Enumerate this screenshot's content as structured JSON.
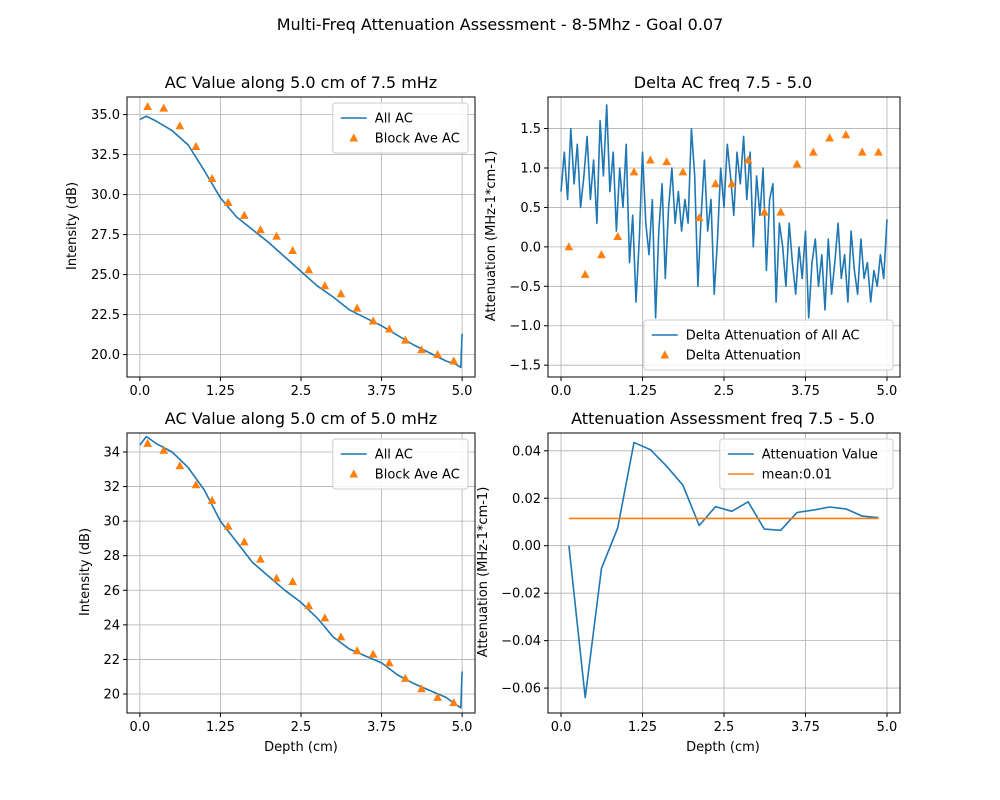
{
  "figure": {
    "suptitle": "Multi-Freq Attenuation Assessment - 8-5Mhz - Goal 0.07"
  },
  "colors": {
    "blue": "#1f77b4",
    "orange": "#ff7f0e",
    "grid": "#b0b0b0"
  },
  "chart_data": [
    {
      "type": "line",
      "title": "AC Value along 5.0 cm of 7.5 mHz",
      "xlabel": "",
      "ylabel": "Intensity (dB)",
      "xlim": [
        -0.2,
        5.2
      ],
      "ylim": [
        18.6,
        36.1
      ],
      "xticks": [
        0.0,
        1.25,
        2.5,
        3.75,
        5.0
      ],
      "xtick_labels": [
        "0.0",
        "1.25",
        "2.5",
        "3.75",
        "5.0"
      ],
      "yticks": [
        20.0,
        22.5,
        25.0,
        27.5,
        30.0,
        32.5,
        35.0
      ],
      "ytick_labels": [
        "20.0",
        "22.5",
        "25.0",
        "27.5",
        "30.0",
        "32.5",
        "35.0"
      ],
      "grid": true,
      "legend_position": "top-right",
      "series": [
        {
          "name": "All AC",
          "style": "line",
          "x": [
            0.0,
            0.1,
            0.25,
            0.5,
            0.75,
            1.0,
            1.25,
            1.5,
            1.75,
            2.0,
            2.25,
            2.5,
            2.75,
            3.0,
            3.25,
            3.5,
            3.75,
            4.0,
            4.25,
            4.5,
            4.75,
            4.9,
            4.98,
            5.0
          ],
          "y": [
            34.7,
            34.9,
            34.6,
            34.0,
            33.1,
            31.5,
            29.8,
            28.6,
            27.8,
            27.0,
            26.1,
            25.2,
            24.3,
            23.6,
            22.8,
            22.3,
            21.8,
            21.2,
            20.6,
            20.1,
            19.6,
            19.4,
            19.2,
            21.3
          ]
        },
        {
          "name": "Block Ave AC",
          "style": "triangle",
          "x": [
            0.12,
            0.37,
            0.62,
            0.87,
            1.12,
            1.37,
            1.62,
            1.87,
            2.12,
            2.37,
            2.62,
            2.87,
            3.12,
            3.37,
            3.62,
            3.87,
            4.12,
            4.37,
            4.62,
            4.87
          ],
          "y": [
            35.5,
            35.4,
            34.3,
            33.0,
            31.0,
            29.5,
            28.7,
            27.8,
            27.4,
            26.5,
            25.3,
            24.3,
            23.8,
            22.9,
            22.1,
            21.6,
            20.9,
            20.3,
            20.0,
            19.6
          ]
        }
      ]
    },
    {
      "type": "line",
      "title": "Delta AC freq 7.5 - 5.0",
      "xlabel": "",
      "ylabel": "Attenuation (MHz-1*cm-1)",
      "xlim": [
        -0.2,
        5.2
      ],
      "ylim": [
        -1.65,
        1.9
      ],
      "xticks": [
        0.0,
        1.25,
        2.5,
        3.75,
        5.0
      ],
      "xtick_labels": [
        "0.0",
        "1.25",
        "2.5",
        "3.75",
        "5.0"
      ],
      "yticks": [
        -1.5,
        -1.0,
        -0.5,
        0.0,
        0.5,
        1.0,
        1.5
      ],
      "ytick_labels": [
        "−1.5",
        "−1.0",
        "−0.5",
        "0.0",
        "0.5",
        "1.0",
        "1.5"
      ],
      "grid": true,
      "legend_position": "bottom-right",
      "series": [
        {
          "name": "Delta Attenuation of All AC",
          "style": "line",
          "x": [
            0.0,
            0.05,
            0.1,
            0.15,
            0.2,
            0.25,
            0.3,
            0.35,
            0.4,
            0.45,
            0.5,
            0.55,
            0.6,
            0.65,
            0.7,
            0.75,
            0.8,
            0.85,
            0.9,
            0.95,
            1.0,
            1.05,
            1.1,
            1.15,
            1.2,
            1.25,
            1.3,
            1.35,
            1.4,
            1.45,
            1.5,
            1.55,
            1.6,
            1.65,
            1.7,
            1.75,
            1.8,
            1.85,
            1.9,
            1.95,
            2.0,
            2.05,
            2.1,
            2.15,
            2.2,
            2.25,
            2.3,
            2.35,
            2.4,
            2.45,
            2.5,
            2.55,
            2.6,
            2.65,
            2.7,
            2.75,
            2.8,
            2.85,
            2.9,
            2.95,
            3.0,
            3.05,
            3.1,
            3.15,
            3.2,
            3.25,
            3.3,
            3.35,
            3.4,
            3.45,
            3.5,
            3.55,
            3.6,
            3.65,
            3.7,
            3.75,
            3.8,
            3.85,
            3.9,
            3.95,
            4.0,
            4.05,
            4.1,
            4.15,
            4.2,
            4.25,
            4.3,
            4.35,
            4.4,
            4.45,
            4.5,
            4.55,
            4.6,
            4.65,
            4.7,
            4.75,
            4.8,
            4.85,
            4.9,
            4.95,
            5.0
          ],
          "y": [
            0.7,
            1.2,
            0.6,
            1.5,
            0.8,
            1.3,
            0.5,
            0.9,
            1.4,
            0.6,
            1.1,
            0.3,
            1.6,
            0.9,
            1.8,
            0.7,
            1.2,
            0.2,
            1.0,
            0.5,
            1.3,
            -0.2,
            0.4,
            -0.7,
            0.1,
            1.2,
            0.3,
            -0.1,
            0.6,
            -0.9,
            0.2,
            0.8,
            -0.4,
            0.5,
            1.0,
            0.3,
            0.7,
            0.2,
            0.6,
            0.3,
            1.5,
            0.9,
            -0.5,
            0.4,
            1.1,
            0.2,
            0.6,
            -0.6,
            0.1,
            1.0,
            0.5,
            1.3,
            0.9,
            0.4,
            1.2,
            0.8,
            1.4,
            0.6,
            1.2,
            0.0,
            0.9,
            0.4,
            1.0,
            -0.3,
            0.6,
            0.8,
            -0.7,
            0.3,
            0.0,
            -0.5,
            0.3,
            -0.2,
            -0.6,
            0.0,
            -0.4,
            0.2,
            -0.9,
            -0.2,
            0.1,
            -0.5,
            -0.1,
            -0.8,
            0.1,
            -0.6,
            -0.2,
            0.3,
            -0.4,
            -0.1,
            -0.7,
            0.2,
            -0.3,
            -0.6,
            0.1,
            -0.4,
            -0.2,
            -0.7,
            -0.3,
            -0.5,
            -0.1,
            -0.4,
            0.35
          ]
        },
        {
          "name": "Delta Attenuation",
          "style": "triangle",
          "x": [
            0.12,
            0.37,
            0.62,
            0.87,
            1.12,
            1.37,
            1.62,
            1.87,
            2.12,
            2.37,
            2.62,
            2.87,
            3.12,
            3.37,
            3.62,
            3.87,
            4.12,
            4.37,
            4.62,
            4.87
          ],
          "y": [
            0.0,
            -0.35,
            -0.1,
            0.13,
            0.95,
            1.1,
            1.08,
            0.95,
            0.37,
            0.8,
            0.8,
            1.1,
            0.44,
            0.44,
            1.05,
            1.2,
            1.38,
            1.42,
            1.2,
            1.2
          ]
        }
      ]
    },
    {
      "type": "line",
      "title": "AC Value along 5.0 cm of 5.0 mHz",
      "xlabel": "Depth (cm)",
      "ylabel": "Intensity (dB)",
      "xlim": [
        -0.2,
        5.2
      ],
      "ylim": [
        18.9,
        35.1
      ],
      "xticks": [
        0.0,
        1.25,
        2.5,
        3.75,
        5.0
      ],
      "xtick_labels": [
        "0.0",
        "1.25",
        "2.5",
        "3.75",
        "5.0"
      ],
      "yticks": [
        20,
        22,
        24,
        26,
        28,
        30,
        32,
        34
      ],
      "ytick_labels": [
        "20",
        "22",
        "24",
        "26",
        "28",
        "30",
        "32",
        "34"
      ],
      "grid": true,
      "legend_position": "top-right",
      "series": [
        {
          "name": "All AC",
          "style": "line",
          "x": [
            0.0,
            0.1,
            0.25,
            0.5,
            0.75,
            1.0,
            1.25,
            1.5,
            1.75,
            2.0,
            2.25,
            2.5,
            2.75,
            3.0,
            3.25,
            3.5,
            3.75,
            4.0,
            4.25,
            4.5,
            4.75,
            4.9,
            4.98,
            5.0
          ],
          "y": [
            34.4,
            34.9,
            34.5,
            34.0,
            33.1,
            31.8,
            30.0,
            28.8,
            27.6,
            26.8,
            26.0,
            25.3,
            24.4,
            23.3,
            22.6,
            22.2,
            21.8,
            21.1,
            20.6,
            20.2,
            19.8,
            19.4,
            19.2,
            21.3
          ]
        },
        {
          "name": "Block Ave AC",
          "style": "triangle",
          "x": [
            0.12,
            0.37,
            0.62,
            0.87,
            1.12,
            1.37,
            1.62,
            1.87,
            2.12,
            2.37,
            2.62,
            2.87,
            3.12,
            3.37,
            3.62,
            3.87,
            4.12,
            4.37,
            4.62,
            4.87
          ],
          "y": [
            34.5,
            34.1,
            33.2,
            32.1,
            31.2,
            29.7,
            28.8,
            27.8,
            26.7,
            26.5,
            25.1,
            24.4,
            23.3,
            22.5,
            22.3,
            21.8,
            20.9,
            20.3,
            19.8,
            19.5
          ]
        }
      ]
    },
    {
      "type": "line",
      "title": "Attenuation Assessment freq 7.5 - 5.0",
      "xlabel": "Depth (cm)",
      "ylabel": "Attenuation (MHz-1*cm-1)",
      "xlim": [
        -0.2,
        5.2
      ],
      "ylim": [
        -0.0705,
        0.0475
      ],
      "xticks": [
        0.0,
        1.25,
        2.5,
        3.75,
        5.0
      ],
      "xtick_labels": [
        "0.0",
        "1.25",
        "2.5",
        "3.75",
        "5.0"
      ],
      "yticks": [
        -0.06,
        -0.04,
        -0.02,
        0.0,
        0.02,
        0.04
      ],
      "ytick_labels": [
        "−0.06",
        "−0.04",
        "−0.02",
        "0.00",
        "0.02",
        "0.04"
      ],
      "grid": true,
      "legend_position": "top-right",
      "series": [
        {
          "name": "Attenuation Value",
          "style": "line",
          "x": [
            0.12,
            0.37,
            0.62,
            0.87,
            1.12,
            1.37,
            1.62,
            1.87,
            2.12,
            2.37,
            2.62,
            2.87,
            3.12,
            3.37,
            3.62,
            3.87,
            4.12,
            4.37,
            4.62,
            4.87
          ],
          "y": [
            0.0,
            -0.064,
            -0.0095,
            0.0075,
            0.0435,
            0.0405,
            0.0335,
            0.0255,
            0.0085,
            0.0165,
            0.0145,
            0.0185,
            0.007,
            0.0065,
            0.014,
            0.015,
            0.0163,
            0.0155,
            0.0125,
            0.0118
          ]
        },
        {
          "name": "mean:0.01",
          "style": "line",
          "x": [
            0.12,
            4.87
          ],
          "y": [
            0.0115,
            0.0115
          ]
        }
      ]
    }
  ]
}
